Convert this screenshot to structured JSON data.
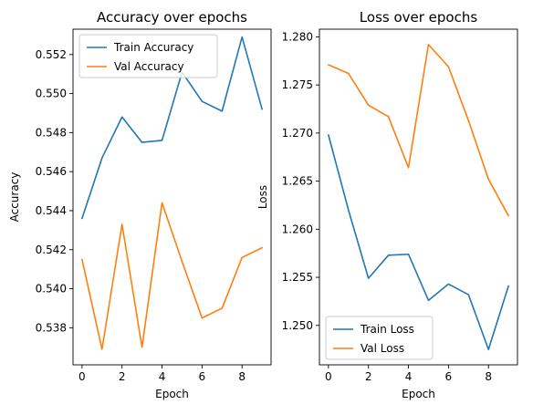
{
  "chart_data": [
    {
      "type": "line",
      "title": "Accuracy over epochs",
      "xlabel": "Epoch",
      "ylabel": "Accuracy",
      "x": [
        0,
        1,
        2,
        3,
        4,
        5,
        6,
        7,
        8,
        9
      ],
      "xlim": [
        -0.45,
        9.45
      ],
      "ylim": [
        0.5361,
        0.5533
      ],
      "xticks": [
        0,
        2,
        4,
        6,
        8
      ],
      "xtick_labels": [
        "0",
        "2",
        "4",
        "6",
        "8"
      ],
      "yticks": [
        0.538,
        0.54,
        0.542,
        0.544,
        0.546,
        0.548,
        0.55,
        0.552
      ],
      "ytick_labels": [
        "0.538",
        "0.540",
        "0.542",
        "0.544",
        "0.546",
        "0.548",
        "0.550",
        "0.552"
      ],
      "legend_position": "upper-left",
      "grid": false,
      "series": [
        {
          "name": "Train Accuracy",
          "color": "#1f77b4",
          "values": [
            0.5436,
            0.5467,
            0.5488,
            0.5475,
            0.5476,
            0.5511,
            0.5496,
            0.5491,
            0.5529,
            0.5492
          ]
        },
        {
          "name": "Val Accuracy",
          "color": "#ff7f0e",
          "values": [
            0.5415,
            0.5369,
            0.5433,
            0.537,
            0.5444,
            0.5414,
            0.5385,
            0.539,
            0.5416,
            0.5421
          ]
        }
      ]
    },
    {
      "type": "line",
      "title": "Loss over epochs",
      "xlabel": "Epoch",
      "ylabel": "Loss",
      "x": [
        0,
        1,
        2,
        3,
        4,
        5,
        6,
        7,
        8,
        9
      ],
      "xlim": [
        -0.45,
        9.45
      ],
      "ylim": [
        1.2459,
        1.2808
      ],
      "xticks": [
        0,
        2,
        4,
        6,
        8
      ],
      "xtick_labels": [
        "0",
        "2",
        "4",
        "6",
        "8"
      ],
      "yticks": [
        1.25,
        1.255,
        1.26,
        1.265,
        1.27,
        1.275,
        1.28
      ],
      "ytick_labels": [
        "1.250",
        "1.255",
        "1.260",
        "1.265",
        "1.270",
        "1.275",
        "1.280"
      ],
      "legend_position": "lower-left",
      "grid": false,
      "series": [
        {
          "name": "Train Loss",
          "color": "#1f77b4",
          "values": [
            1.2698,
            1.262,
            1.2549,
            1.2573,
            1.2574,
            1.2526,
            1.2543,
            1.2532,
            1.2475,
            1.2541
          ]
        },
        {
          "name": "Val Loss",
          "color": "#ff7f0e",
          "values": [
            1.2771,
            1.2762,
            1.2729,
            1.2717,
            1.2664,
            1.2792,
            1.2769,
            1.2713,
            1.2652,
            1.2614
          ]
        }
      ]
    }
  ]
}
